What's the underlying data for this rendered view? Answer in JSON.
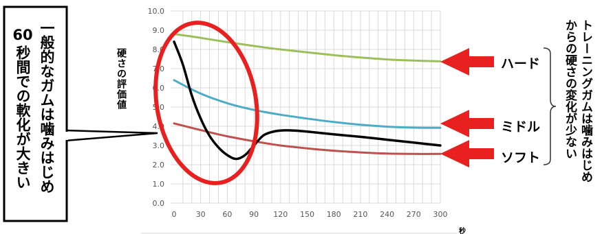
{
  "colors": {
    "hard": "#9dbf5b",
    "middle": "#4bacc6",
    "soft": "#c0504d",
    "regular": "#000000",
    "annotation": "#e8201f",
    "grid": "#d9d9d9"
  },
  "callout_box": {
    "col1": "一般的なガムは噛みはじめ",
    "col2_number": "60",
    "col2_text": "秒間での軟化が大きい"
  },
  "right_note": {
    "col1": "トレーニングガムは噛みはじめ",
    "col2": "からの硬さの変化が少ない"
  },
  "arrow_labels": {
    "hard": "ハード",
    "middle": "ミドル",
    "soft": "ソフト"
  },
  "chart_data": {
    "type": "line",
    "title": "",
    "xlabel": "秒",
    "ylabel": "硬さの評価値",
    "x_ticks": [
      "0",
      "30",
      "60",
      "90",
      "120",
      "150",
      "180",
      "210",
      "240",
      "270",
      "300"
    ],
    "y_ticks": [
      "10.0",
      "9.0",
      "8.0",
      "7.0",
      "6.0",
      "5.0",
      "4.0",
      "3.0",
      "2.0",
      "1.0",
      "0.0"
    ],
    "xlim": [
      0,
      300
    ],
    "ylim": [
      0,
      10
    ],
    "grid": true,
    "series": [
      {
        "key": "hard",
        "name": "ハード",
        "x": [
          0,
          30,
          60,
          90,
          120,
          150,
          180,
          210,
          240,
          270,
          300
        ],
        "values": [
          8.8,
          8.6,
          8.38,
          8.18,
          8.0,
          7.85,
          7.7,
          7.58,
          7.48,
          7.42,
          7.38
        ]
      },
      {
        "key": "middle",
        "name": "ミドル",
        "x": [
          0,
          30,
          60,
          90,
          120,
          150,
          180,
          210,
          240,
          270,
          300
        ],
        "values": [
          6.4,
          5.7,
          5.2,
          4.85,
          4.6,
          4.4,
          4.22,
          4.08,
          3.98,
          3.93,
          3.92
        ]
      },
      {
        "key": "soft",
        "name": "ソフト",
        "x": [
          0,
          30,
          60,
          90,
          120,
          150,
          180,
          210,
          240,
          270,
          300
        ],
        "values": [
          4.15,
          3.8,
          3.48,
          3.22,
          3.0,
          2.85,
          2.73,
          2.64,
          2.58,
          2.56,
          2.56
        ]
      },
      {
        "key": "regular",
        "x": [
          0,
          10,
          20,
          30,
          40,
          50,
          60,
          70,
          80,
          90,
          100,
          110,
          120,
          135,
          150,
          180,
          210,
          240,
          270,
          300
        ],
        "values": [
          8.4,
          7.2,
          5.6,
          4.4,
          3.5,
          2.9,
          2.5,
          2.3,
          2.5,
          3.0,
          3.5,
          3.7,
          3.78,
          3.78,
          3.72,
          3.58,
          3.45,
          3.3,
          3.15,
          3.0
        ]
      }
    ]
  }
}
